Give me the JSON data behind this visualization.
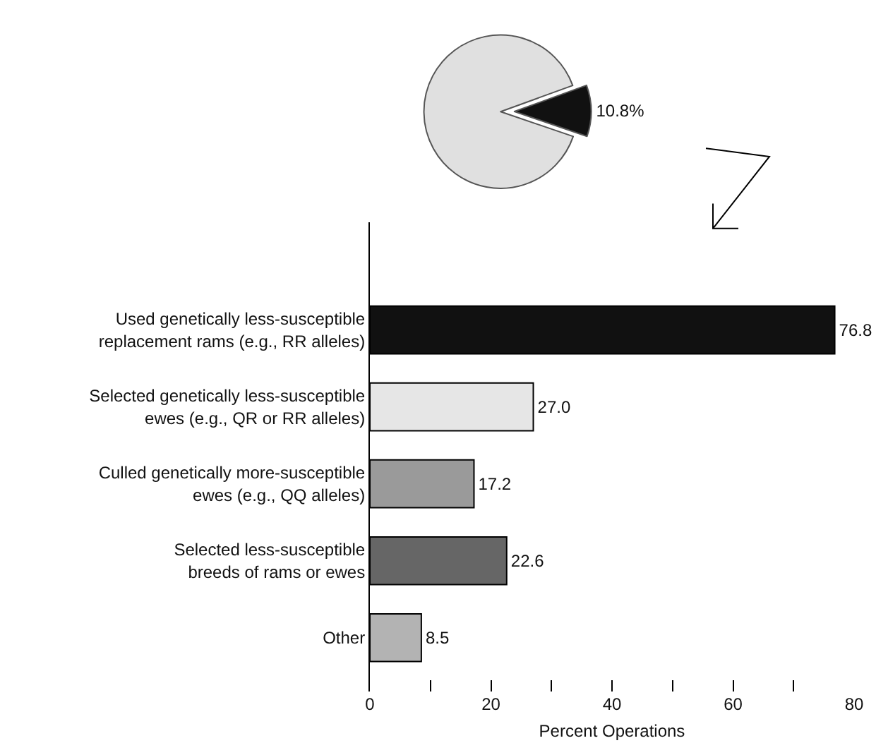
{
  "chart_data": [
    {
      "type": "pie",
      "categories": [
        null,
        null
      ],
      "values": [
        10.8,
        89.2
      ],
      "colors": [
        "#111111",
        "#e0e0e0"
      ],
      "value_labels": [
        "10.8%",
        null
      ]
    },
    {
      "type": "bar",
      "orientation": "horizontal",
      "xlabel": "Percent Operations",
      "categories": [
        "Used genetically less-susceptible\nreplacement rams (e.g., RR alleles)",
        "Selected genetically less-susceptible\newes (e.g., QR or RR alleles)",
        "Culled genetically more-susceptible\newes (e.g., QQ alleles)",
        "Selected less-susceptible\nbreeds of rams or ewes",
        "Other"
      ],
      "values": [
        76.8,
        27.0,
        17.2,
        22.6,
        8.5
      ],
      "colors": [
        "#111111",
        "#e6e6e6",
        "#9a9a9a",
        "#666666",
        "#b3b3b3"
      ],
      "value_labels": [
        "76.8",
        "27.0",
        "17.2",
        "22.6",
        "8.5"
      ],
      "xlim": [
        0,
        80
      ],
      "xticks": [
        0,
        {
          "value": 10,
          "label": null
        },
        20,
        {
          "value": 30,
          "label": null
        },
        40,
        {
          "value": 50,
          "label": null
        },
        60,
        {
          "value": 70,
          "label": null
        },
        80
      ]
    }
  ]
}
